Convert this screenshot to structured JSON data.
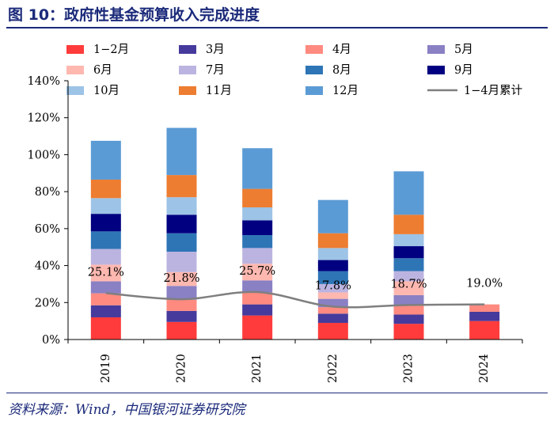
{
  "header": {
    "figure_title": "图 10：政府性基金预算收入完成进度"
  },
  "footer": {
    "source": "资料来源：Wind，中国银河证券研究院"
  },
  "chart_data": {
    "type": "bar",
    "stacked": true,
    "title": "政府性基金预算收入完成进度",
    "xlabel": "",
    "ylabel": "",
    "ylim": [
      0,
      140
    ],
    "yticks": [
      0,
      20,
      40,
      60,
      80,
      100,
      120,
      140
    ],
    "ytick_format": "%",
    "categories": [
      "2019",
      "2020",
      "2021",
      "2022",
      "2023",
      "2024"
    ],
    "series": [
      {
        "name": "1-2月",
        "legend_label": "1−2月",
        "color": "#ff3b3b",
        "values": [
          12.0,
          9.5,
          13.0,
          9.0,
          8.5,
          10.0
        ]
      },
      {
        "name": "3月",
        "legend_label": "3月",
        "color": "#463a9c",
        "values": [
          6.5,
          6.0,
          6.0,
          5.0,
          5.0,
          5.0
        ]
      },
      {
        "name": "4月",
        "legend_label": "4月",
        "color": "#ff8a80",
        "values": [
          6.5,
          6.0,
          6.5,
          3.5,
          5.0,
          4.0
        ]
      },
      {
        "name": "5月",
        "legend_label": "5月",
        "color": "#8a80c4",
        "values": [
          6.5,
          7.5,
          6.5,
          4.5,
          5.5,
          0
        ]
      },
      {
        "name": "6月",
        "legend_label": "6月",
        "color": "#ffb8b0",
        "values": [
          9.0,
          7.5,
          9.0,
          3.5,
          7.5,
          0
        ]
      },
      {
        "name": "7月",
        "legend_label": "7月",
        "color": "#bcb4e0",
        "values": [
          8.5,
          11.0,
          8.5,
          4.5,
          5.5,
          0
        ]
      },
      {
        "name": "8月",
        "legend_label": "8月",
        "color": "#2e75b6",
        "values": [
          9.5,
          10.0,
          7.0,
          7.0,
          7.0,
          0
        ]
      },
      {
        "name": "9月",
        "legend_label": "9月",
        "color": "#000080",
        "values": [
          9.5,
          10.0,
          8.0,
          6.0,
          6.5,
          0
        ]
      },
      {
        "name": "10月",
        "legend_label": "10月",
        "color": "#9dc3e6",
        "values": [
          8.5,
          9.5,
          7.0,
          6.5,
          6.5,
          0
        ]
      },
      {
        "name": "11月",
        "legend_label": "11月",
        "color": "#ed7d31",
        "values": [
          10.0,
          12.0,
          10.0,
          8.0,
          10.5,
          0
        ]
      },
      {
        "name": "12月",
        "legend_label": "12月",
        "color": "#5b9bd5",
        "values": [
          21.0,
          25.5,
          22.0,
          18.0,
          23.5,
          0
        ]
      }
    ],
    "line_series": {
      "name": "1-4月累计",
      "legend_label": "1−4月累计",
      "color": "#7f7f7f",
      "values": [
        25.1,
        21.8,
        25.7,
        17.8,
        18.7,
        19.0
      ],
      "labels": [
        "25.1%",
        "21.8%",
        "25.7%",
        "17.8%",
        "18.7%",
        "19.0%"
      ]
    },
    "grid": false,
    "legend_position": "top"
  }
}
